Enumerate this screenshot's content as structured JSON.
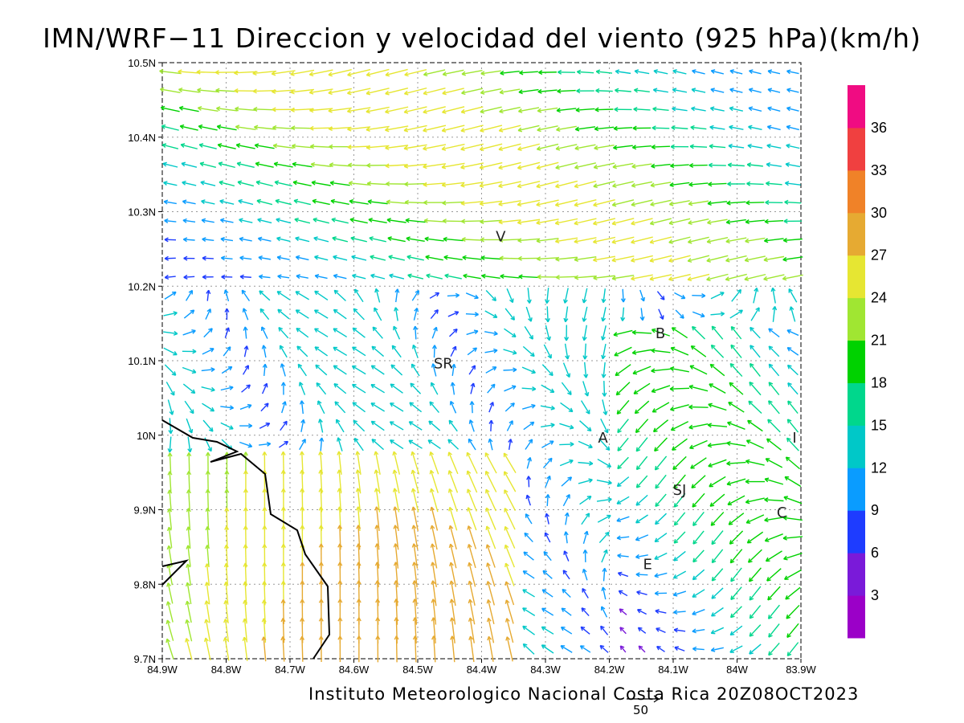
{
  "title": "IMN/WRF−11 Direccion y velocidad del viento (925 hPa)(km/h)",
  "footer": "Instituto Meteorologico Nacional Costa Rica  20Z08OCT2023",
  "scale_label": "50",
  "map": {
    "lon_range": [
      -84.9,
      -83.9
    ],
    "lat_range": [
      9.7,
      10.5
    ],
    "x_ticks": [
      "84.9W",
      "84.8W",
      "84.7W",
      "84.6W",
      "84.5W",
      "84.4W",
      "84.3W",
      "84.2W",
      "84.1W",
      "84W",
      "83.9W"
    ],
    "y_ticks": [
      "9.7N",
      "9.8N",
      "9.9N",
      "10N",
      "10.1N",
      "10.2N",
      "10.3N",
      "10.4N",
      "10.5N"
    ],
    "grid": true,
    "places": [
      {
        "label": "V",
        "lon": -84.37,
        "lat": 10.26
      },
      {
        "label": "B",
        "lon": -84.12,
        "lat": 10.13
      },
      {
        "label": "SR",
        "lon": -84.46,
        "lat": 10.09
      },
      {
        "label": "A",
        "lon": -84.21,
        "lat": 9.99
      },
      {
        "label": "I",
        "lon": -83.91,
        "lat": 9.99
      },
      {
        "label": "SJ",
        "lon": -84.09,
        "lat": 9.92
      },
      {
        "label": "C",
        "lon": -83.93,
        "lat": 9.89
      },
      {
        "label": "E",
        "lon": -84.14,
        "lat": 9.82
      }
    ]
  },
  "colorbar": {
    "labels": [
      "3",
      "6",
      "9",
      "12",
      "15",
      "18",
      "21",
      "24",
      "27",
      "30",
      "33",
      "36"
    ],
    "colors": [
      "#9b00c8",
      "#7a1ad9",
      "#1e3cff",
      "#0a9cff",
      "#00c8c8",
      "#00d78c",
      "#00d200",
      "#a0e632",
      "#e6e632",
      "#e6aa32",
      "#f08228",
      "#f04040",
      "#f00c82"
    ]
  }
}
